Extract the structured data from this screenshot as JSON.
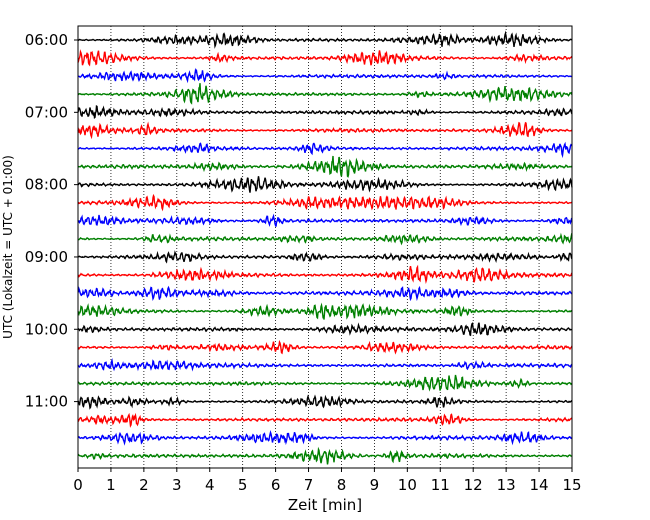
{
  "chart_data": {
    "type": "line",
    "title": "",
    "xlabel": "Zeit  [min]",
    "ylabel": "UTC (Lokalzeit = UTC + 01:00)",
    "xlim": [
      0,
      15
    ],
    "x_ticks": [
      0,
      1,
      2,
      3,
      4,
      5,
      6,
      7,
      8,
      9,
      10,
      11,
      12,
      13,
      14,
      15
    ],
    "y_tick_labels": [
      "06:00",
      "07:00",
      "08:00",
      "09:00",
      "10:00",
      "11:00"
    ],
    "grid": "vertical dotted lines at each minute",
    "trace_interval_minutes": 15,
    "color_cycle": [
      "#000000",
      "#ff0000",
      "#0000ff",
      "#008000"
    ],
    "traces": [
      {
        "start": "06:00",
        "color": "#000000"
      },
      {
        "start": "06:15",
        "color": "#ff0000"
      },
      {
        "start": "06:30",
        "color": "#0000ff"
      },
      {
        "start": "06:45",
        "color": "#008000"
      },
      {
        "start": "07:00",
        "color": "#000000"
      },
      {
        "start": "07:15",
        "color": "#ff0000"
      },
      {
        "start": "07:30",
        "color": "#0000ff"
      },
      {
        "start": "07:45",
        "color": "#008000"
      },
      {
        "start": "08:00",
        "color": "#000000"
      },
      {
        "start": "08:15",
        "color": "#ff0000"
      },
      {
        "start": "08:30",
        "color": "#0000ff"
      },
      {
        "start": "08:45",
        "color": "#008000"
      },
      {
        "start": "09:00",
        "color": "#000000"
      },
      {
        "start": "09:15",
        "color": "#ff0000"
      },
      {
        "start": "09:30",
        "color": "#0000ff"
      },
      {
        "start": "09:45",
        "color": "#008000"
      },
      {
        "start": "10:00",
        "color": "#000000"
      },
      {
        "start": "10:15",
        "color": "#ff0000"
      },
      {
        "start": "10:30",
        "color": "#0000ff"
      },
      {
        "start": "10:45",
        "color": "#008000"
      },
      {
        "start": "11:00",
        "color": "#000000"
      },
      {
        "start": "11:15",
        "color": "#ff0000"
      },
      {
        "start": "11:30",
        "color": "#0000ff"
      },
      {
        "start": "11:45",
        "color": "#008000"
      }
    ]
  }
}
